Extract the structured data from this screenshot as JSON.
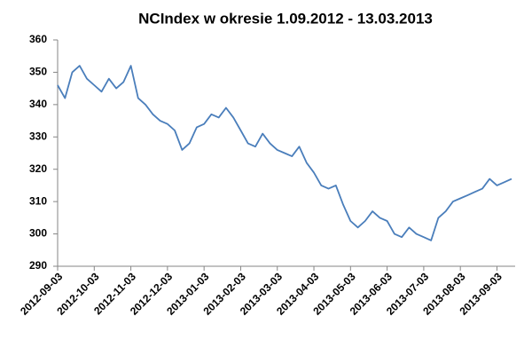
{
  "chart_data": {
    "type": "line",
    "title": "NCIndex w okresie 1.09.2012 - 13.03.2013",
    "categories": [
      "2012-09-03",
      null,
      null,
      null,
      null,
      "2012-10-03",
      null,
      null,
      null,
      null,
      "2012-11-03",
      null,
      null,
      null,
      null,
      "2012-12-03",
      null,
      null,
      null,
      null,
      "2013-01-03",
      null,
      null,
      null,
      null,
      "2013-02-03",
      null,
      null,
      null,
      null,
      "2013-03-03",
      null,
      null,
      null,
      null,
      "2013-04-03",
      null,
      null,
      null,
      null,
      "2013-05-03",
      null,
      null,
      null,
      null,
      "2013-06-03",
      null,
      null,
      null,
      null,
      "2013-07-03",
      null,
      null,
      null,
      null,
      "2013-08-03",
      null,
      null,
      null,
      null,
      "2013-09-03",
      null,
      null
    ],
    "series": [
      {
        "name": "NCIndex",
        "color": "#4a7ebb",
        "values": [
          346,
          342,
          350,
          352,
          348,
          346,
          344,
          348,
          345,
          347,
          352,
          342,
          340,
          337,
          335,
          334,
          332,
          326,
          328,
          333,
          334,
          337,
          336,
          339,
          336,
          332,
          328,
          327,
          331,
          328,
          326,
          325,
          324,
          327,
          322,
          319,
          315,
          314,
          315,
          309,
          304,
          302,
          304,
          307,
          305,
          304,
          300,
          299,
          302,
          300,
          299,
          298,
          305,
          307,
          310,
          311,
          312,
          313,
          314,
          317,
          315,
          316,
          317
        ]
      }
    ],
    "ylim": [
      290,
      360
    ],
    "yticks": [
      290,
      300,
      310,
      320,
      330,
      340,
      350,
      360
    ],
    "grid": false
  }
}
